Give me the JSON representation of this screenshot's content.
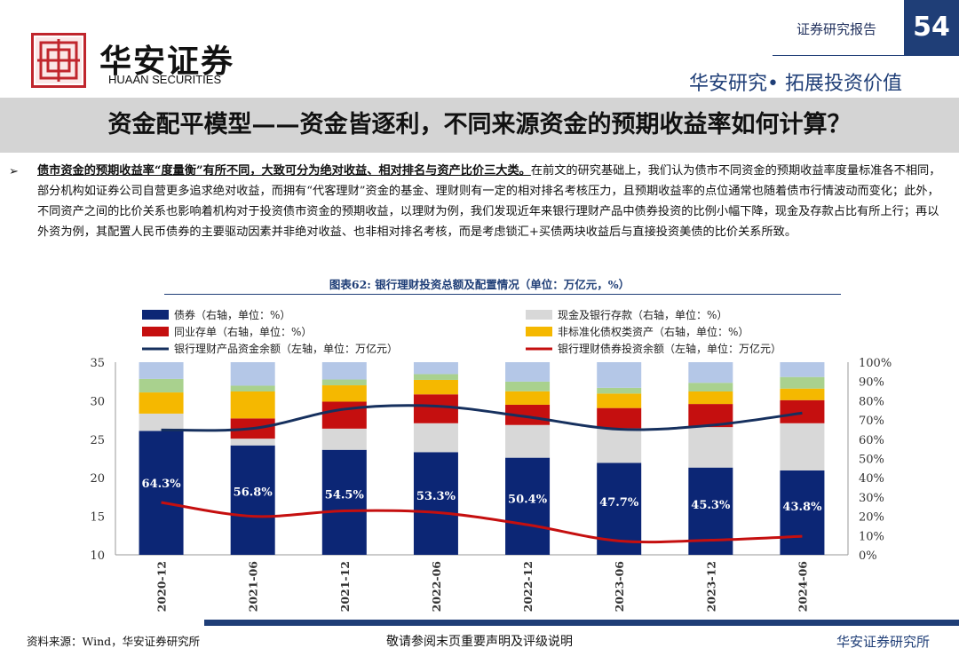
{
  "header": {
    "logo_cn": "华安证券",
    "logo_en": "HUAAN SECURITIES",
    "report_label": "证券研究报告",
    "page_number": "54",
    "slogan": "华安研究• 拓展投资价值"
  },
  "title": "资金配平模型——资金皆逐利，不同来源资金的预期收益率如何计算？",
  "body": {
    "bullet_glyph": "➢",
    "lead_bold": "债市资金的预期收益率“度量衡”有所不同，大致可分为绝对收益、相对排名与资产比价三大类。",
    "text": "在前文的研究基础上，我们认为债市不同资金的预期收益率度量标准各不相同，部分机构如证券公司自营更多追求绝对收益，而拥有“代客理财”资金的基金、理财则有一定的相对排名考核压力，且预期收益率的点位通常也随着债市行情波动而变化；此外，不同资产之间的比价关系也影响着机构对于投资债市资金的预期收益，以理财为例，我们发现近年来银行理财产品中债券投资的比例小幅下降，现金及存款占比有所上行；再以外资为例，其配置人民币债券的主要驱动因素并非绝对收益、也非相对排名考核，而是考虑锁汇+买债两块收益后与直接投资美债的比价关系所致。"
  },
  "chart_title": "图表62: 银行理财投资总额及配置情况（单位：万亿元，%）",
  "colors": {
    "brand_red": "#c0262d",
    "navy": "#1f3e77",
    "bond": "#0c2675",
    "cash": "#d8d8d8",
    "ncd": "#c50f0f",
    "nonstd": "#f5b800",
    "green": "#a9d18e",
    "lightblue": "#b4c7e7"
  },
  "chart_data": {
    "type": "bar",
    "categories": [
      "2020-12",
      "2021-06",
      "2021-12",
      "2022-06",
      "2022-12",
      "2023-06",
      "2023-12",
      "2024-06"
    ],
    "series": [
      {
        "name": "债券（右轴，单位：%）",
        "axis": "right",
        "stack": "alloc",
        "values": [
          64.3,
          56.8,
          54.5,
          53.3,
          50.4,
          47.7,
          45.3,
          43.8
        ]
      },
      {
        "name": "现金及银行存款（右轴，单位：%）",
        "axis": "right",
        "stack": "alloc",
        "values": [
          9.0,
          3.5,
          11.0,
          15.0,
          17.0,
          18.0,
          21.0,
          24.5
        ]
      },
      {
        "name": "同业存单（右轴，单位：%）",
        "axis": "right",
        "stack": "alloc",
        "values": [
          0.0,
          10.5,
          14.0,
          15.0,
          10.5,
          10.5,
          12.0,
          12.0
        ]
      },
      {
        "name": "非标准化债权类资产（右轴，单位：%）",
        "axis": "right",
        "stack": "alloc",
        "values": [
          11.0,
          14.0,
          8.5,
          7.5,
          7.0,
          7.5,
          6.5,
          6.0
        ]
      },
      {
        "name": "",
        "axis": "right",
        "stack": "alloc",
        "values": [
          7.0,
          3.0,
          3.0,
          3.0,
          5.0,
          3.0,
          4.5,
          6.0
        ]
      },
      {
        "name": "",
        "axis": "right",
        "stack": "alloc",
        "values": [
          8.7,
          12.2,
          9.0,
          6.2,
          10.1,
          13.3,
          10.7,
          7.7
        ]
      },
      {
        "name": "银行理财产品资金余额（左轴，单位：万亿元）",
        "axis": "left",
        "type": "line",
        "values": [
          26.2,
          26.4,
          28.9,
          29.3,
          27.9,
          26.3,
          26.8,
          28.4
        ]
      },
      {
        "name": "银行理财债券投资余额（左轴，单位：万亿元）",
        "axis": "left",
        "type": "line",
        "values": [
          16.8,
          15.0,
          15.7,
          15.5,
          13.9,
          11.8,
          11.9,
          12.4
        ]
      }
    ],
    "data_labels": [
      "64.3%",
      "56.8%",
      "54.5%",
      "53.3%",
      "50.4%",
      "47.7%",
      "45.3%",
      "43.8%"
    ],
    "y_left": {
      "ticks": [
        "10",
        "15",
        "20",
        "25",
        "30",
        "35"
      ],
      "ylim": [
        10,
        35
      ]
    },
    "y_right": {
      "ticks": [
        "0%",
        "10%",
        "20%",
        "30%",
        "40%",
        "50%",
        "60%",
        "70%",
        "80%",
        "90%",
        "100%"
      ],
      "ylim": [
        0,
        100
      ]
    },
    "legend_position": "top"
  },
  "footer": {
    "source": "资料来源：Wind，华安证券研究所",
    "disclaimer": "敬请参阅末页重要声明及评级说明",
    "company": "华安证券研究所"
  }
}
